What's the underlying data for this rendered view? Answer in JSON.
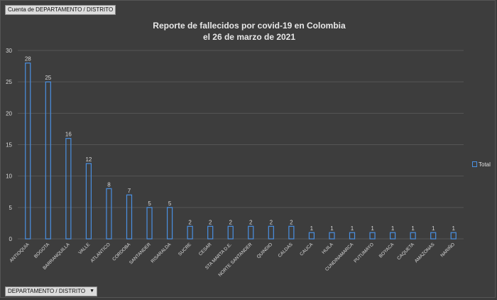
{
  "pivot": {
    "value_field_label": "Cuenta de DEPARTAMENTO / DISTRITO",
    "axis_field_label": "DEPARTAMENTO / DISTRITO"
  },
  "chart_data": {
    "type": "bar",
    "title_line1": "Reporte de fallecidos por covid-19 en Colombia",
    "title_line2": "el 26 de marzo de 2021",
    "categories": [
      "ANTIOQUIA",
      "BOGOTA",
      "BARRANQUILLA",
      "VALLE",
      "ATLANTICO",
      "CORDOBA",
      "SANTANDER",
      "RISARALDA",
      "SUCRE",
      "CESAR",
      "STA MARTA D.E.",
      "NORTE SANTANDER",
      "QUINDIO",
      "CALDAS",
      "CAUCA",
      "HUILA",
      "CUNDINAMARCA",
      "PUTUMAYO",
      "BOYACA",
      "CAQUETA",
      "AMAZONAS",
      "NARIÑO"
    ],
    "series": [
      {
        "name": "Total",
        "values": [
          28,
          25,
          16,
          12,
          8,
          7,
          5,
          5,
          2,
          2,
          2,
          2,
          2,
          2,
          1,
          1,
          1,
          1,
          1,
          1,
          1,
          1
        ]
      }
    ],
    "ylim": [
      0,
      30
    ],
    "yticks": [
      0,
      5,
      10,
      15,
      20,
      25,
      30
    ],
    "grid": true,
    "legend_position": "right",
    "colors": {
      "bar_stroke": "#4a90e2",
      "grid": "#555555",
      "text": "#d8d8d8"
    }
  }
}
